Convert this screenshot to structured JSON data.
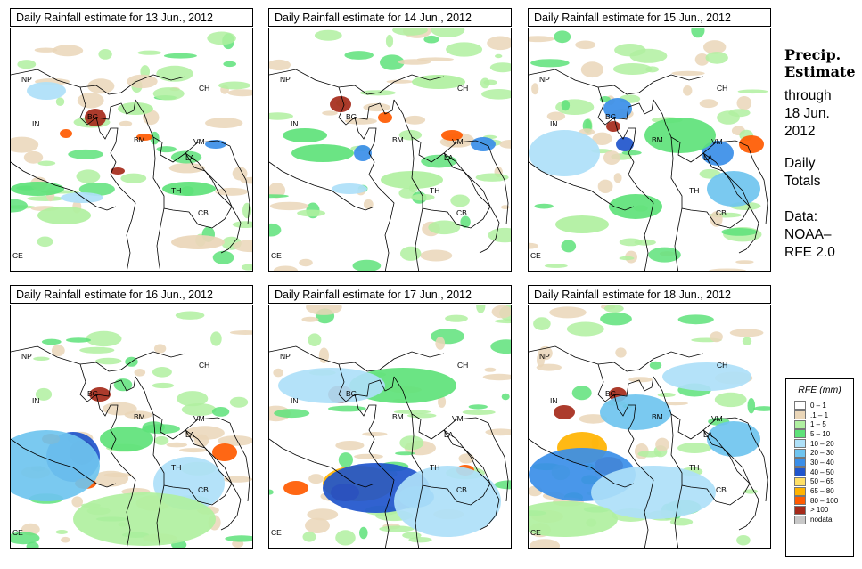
{
  "panels": [
    {
      "title": "Daily Rainfall estimate for  13 Jun., 2012"
    },
    {
      "title": "Daily Rainfall estimate for  14 Jun., 2012"
    },
    {
      "title": "Daily Rainfall estimate for  15 Jun., 2012"
    },
    {
      "title": "Daily Rainfall estimate for  16 Jun., 2012"
    },
    {
      "title": "Daily Rainfall estimate for  17 Jun., 2012"
    },
    {
      "title": "Daily Rainfall estimate for  18 Jun., 2012"
    }
  ],
  "country_labels": [
    "NP",
    "CH",
    "IN",
    "BG",
    "BM",
    "VM",
    "LA",
    "TH",
    "CB",
    "CE"
  ],
  "sidebar": {
    "title_line1": "Precip.",
    "title_line2": "Estimate",
    "line_through": "through",
    "line_date": "18 Jun.",
    "line_year": "2012",
    "line_daily": "Daily",
    "line_totals": "Totals",
    "line_data": "Data:",
    "line_noaa": "NOAA–",
    "line_rfe": "RFE 2.0"
  },
  "legend": {
    "title": "RFE (mm)",
    "items": [
      {
        "label": "0 – 1",
        "color": "#ffffff"
      },
      {
        "label": ".1 – 1",
        "color": "#ead6b8"
      },
      {
        "label": "1 – 5",
        "color": "#b0f0a0"
      },
      {
        "label": "5 – 10",
        "color": "#5ee27a"
      },
      {
        "label": "10 – 20",
        "color": "#aee0f8"
      },
      {
        "label": "20 – 30",
        "color": "#6fc4ef"
      },
      {
        "label": "30 – 40",
        "color": "#3a8ee8"
      },
      {
        "label": "40 – 50",
        "color": "#1f55cc"
      },
      {
        "label": "50 – 65",
        "color": "#ffe066"
      },
      {
        "label": "65 – 80",
        "color": "#ffb300"
      },
      {
        "label": "80 – 100",
        "color": "#ff5a00"
      },
      {
        "label": "> 100",
        "color": "#a52a1a"
      },
      {
        "label": "nodata",
        "color": "#c8c8c8"
      }
    ]
  }
}
